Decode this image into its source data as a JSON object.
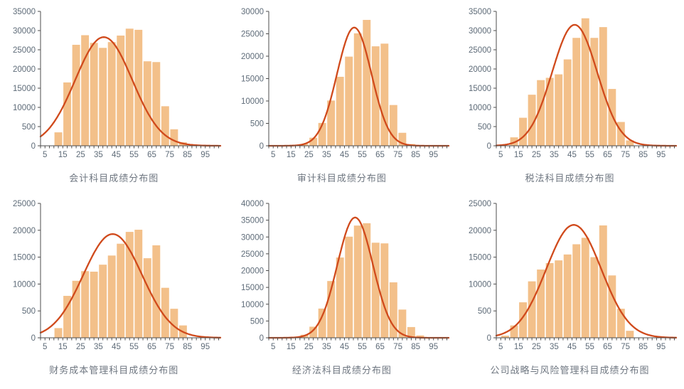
{
  "colors": {
    "background": "#ffffff",
    "bar_fill": "#f3c08a",
    "curve": "#d04a1c",
    "axis": "#4d4d4d",
    "tick_label": "#5e6b78",
    "title": "#6e7680"
  },
  "chart_data": [
    {
      "type": "bar",
      "subtype": "histogram-with-normal-curve",
      "title": "会计科目成绩分布图",
      "xtick_labels": [
        "5",
        "15",
        "25",
        "35",
        "45",
        "55",
        "65",
        "75",
        "85",
        "95"
      ],
      "xlim": [
        2.5,
        103.5
      ],
      "x_minor_tick_step": 2.5,
      "ytick_labels": [
        "0",
        "500",
        "10000",
        "15000",
        "20000",
        "25000",
        "30000",
        "35000"
      ],
      "ymax": 35000,
      "bin_start": 10,
      "bin_width": 5,
      "values": [
        3500,
        16500,
        26300,
        28800,
        26800,
        25500,
        27000,
        28700,
        30500,
        30200,
        22000,
        21800,
        10300,
        4300,
        900
      ],
      "curve": {
        "shape": "normal",
        "mean": 38,
        "sigma": 16,
        "peak": 28300
      }
    },
    {
      "type": "bar",
      "subtype": "histogram-with-normal-curve",
      "title": "审计科目成绩分布图",
      "xtick_labels": [
        "5",
        "15",
        "25",
        "35",
        "45",
        "55",
        "65",
        "75",
        "85",
        "95"
      ],
      "xlim": [
        2.5,
        103.5
      ],
      "x_minor_tick_step": 2.5,
      "ytick_labels": [
        "0",
        "500",
        "10000",
        "15000",
        "20000",
        "25000",
        "30000"
      ],
      "ymax": 30000,
      "bin_start": 20,
      "bin_width": 5,
      "values": [
        400,
        1800,
        5100,
        10100,
        15400,
        19900,
        25100,
        28100,
        22200,
        22800,
        9100,
        2900,
        400
      ],
      "curve": {
        "shape": "normal",
        "mean": 50.5,
        "sigma": 9.7,
        "peak": 26400
      }
    },
    {
      "type": "bar",
      "subtype": "histogram-with-normal-curve",
      "title": "税法科目成绩分布图",
      "xtick_labels": [
        "5",
        "15",
        "25",
        "35",
        "45",
        "55",
        "65",
        "75",
        "85",
        "95"
      ],
      "xlim": [
        2.5,
        103.5
      ],
      "x_minor_tick_step": 2.5,
      "ytick_labels": [
        "0",
        "500",
        "10000",
        "15000",
        "20000",
        "25000",
        "30000",
        "35000"
      ],
      "ymax": 35000,
      "bin_start": 10,
      "bin_width": 5,
      "values": [
        2200,
        7300,
        13300,
        17100,
        17700,
        18600,
        22500,
        28100,
        33200,
        28100,
        30900,
        14800,
        6200,
        1400
      ],
      "curve": {
        "shape": "normal",
        "mean": 46.5,
        "sigma": 12.7,
        "peak": 31500
      }
    },
    {
      "type": "bar",
      "subtype": "histogram-with-normal-curve",
      "title": "财务成本管理科目成绩分布图",
      "xtick_labels": [
        "5",
        "15",
        "25",
        "35",
        "45",
        "55",
        "65",
        "75",
        "85",
        "95"
      ],
      "xlim": [
        2.5,
        103.5
      ],
      "x_minor_tick_step": 2.5,
      "ytick_labels": [
        "0",
        "500",
        "10000",
        "15000",
        "20000",
        "25000"
      ],
      "ymax": 25000,
      "bin_start": 10,
      "bin_width": 5,
      "values": [
        1800,
        7800,
        10600,
        12400,
        12300,
        13600,
        15300,
        17500,
        19700,
        20100,
        14800,
        17200,
        9300,
        5400,
        2300
      ],
      "curve": {
        "shape": "normal",
        "mean": 43,
        "sigma": 16.5,
        "peak": 19300
      }
    },
    {
      "type": "bar",
      "subtype": "histogram-with-normal-curve",
      "title": "经济法科目成绩分布图",
      "xtick_labels": [
        "5",
        "15",
        "25",
        "35",
        "45",
        "55",
        "65",
        "75",
        "85",
        "95"
      ],
      "xlim": [
        2.5,
        103.5
      ],
      "x_minor_tick_step": 2.5,
      "ytick_labels": [
        "0",
        "500",
        "10000",
        "15000",
        "20000",
        "25000",
        "30000",
        "35000",
        "40000"
      ],
      "ymax": 40000,
      "bin_start": 20,
      "bin_width": 5,
      "values": [
        900,
        3300,
        8700,
        16900,
        23900,
        30100,
        33400,
        34100,
        28300,
        28100,
        16500,
        8400,
        3200,
        700
      ],
      "curve": {
        "shape": "normal",
        "mean": 51,
        "sigma": 10,
        "peak": 35800
      }
    },
    {
      "type": "bar",
      "subtype": "histogram-with-normal-curve",
      "title": "公司战略与风险管理科目成绩分布图",
      "xtick_labels": [
        "5",
        "15",
        "25",
        "35",
        "45",
        "55",
        "65",
        "75",
        "85",
        "95"
      ],
      "xlim": [
        2.5,
        103.5
      ],
      "x_minor_tick_step": 2.5,
      "ytick_labels": [
        "0",
        "500",
        "10000",
        "15000",
        "20000",
        "25000"
      ],
      "ymax": 25000,
      "bin_start": 5,
      "bin_width": 5,
      "values": [
        400,
        2300,
        6600,
        10500,
        12700,
        13900,
        14400,
        15500,
        17400,
        18600,
        15000,
        20900,
        11600,
        5400,
        1300
      ],
      "curve": {
        "shape": "normal",
        "mean": 46,
        "sigma": 15.5,
        "peak": 21000
      }
    }
  ]
}
